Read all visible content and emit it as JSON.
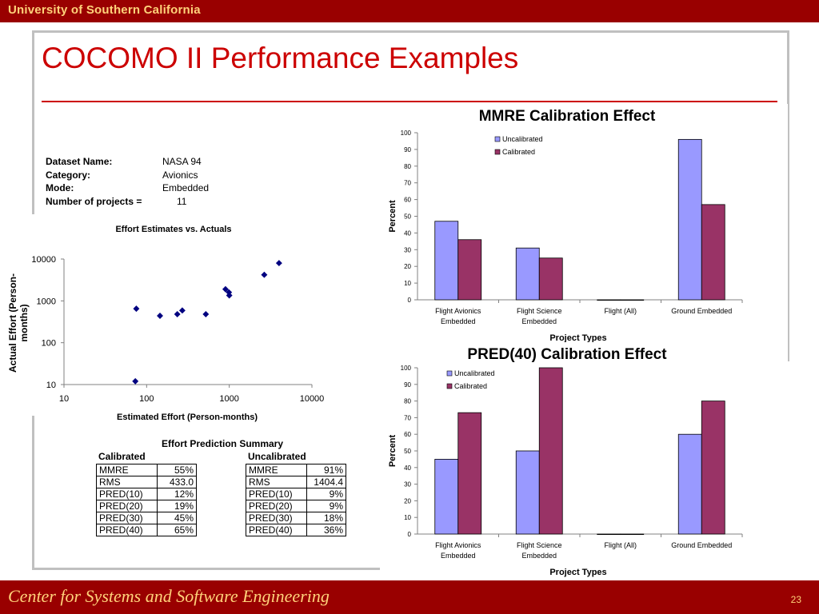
{
  "header": {
    "university": "University of Southern California"
  },
  "slide": {
    "title": "COCOMO II Performance Examples"
  },
  "dataset": [
    {
      "key": "Dataset Name:",
      "value": "NASA 94"
    },
    {
      "key": "Category:",
      "value": "Avionics"
    },
    {
      "key": "Mode:",
      "value": "Embedded"
    },
    {
      "key": "Number of projects =",
      "value": "11"
    }
  ],
  "summary": {
    "title": "Effort Prediction Summary",
    "calibrated_label": "Calibrated",
    "uncalibrated_label": "Uncalibrated",
    "calibrated": [
      [
        "MMRE",
        "55%"
      ],
      [
        "RMS",
        "433.0"
      ],
      [
        "PRED(10)",
        "12%"
      ],
      [
        "PRED(20)",
        "19%"
      ],
      [
        "PRED(30)",
        "45%"
      ],
      [
        "PRED(40)",
        "65%"
      ]
    ],
    "uncalibrated": [
      [
        "MMRE",
        "91%"
      ],
      [
        "RMS",
        "1404.4"
      ],
      [
        "PRED(10)",
        "9%"
      ],
      [
        "PRED(20)",
        "9%"
      ],
      [
        "PRED(30)",
        "18%"
      ],
      [
        "PRED(40)",
        "36%"
      ]
    ]
  },
  "footer": {
    "center": "Center for Systems and Software Engineering",
    "page": "23"
  },
  "chart_data": [
    {
      "type": "scatter",
      "title": "Effort Estimates vs. Actuals",
      "xlabel": "Estimated Effort (Person-months)",
      "ylabel": "Actual Effort (Person-months)",
      "xscale": "log",
      "yscale": "log",
      "xlim": [
        10,
        10000
      ],
      "ylim": [
        10,
        10000
      ],
      "xticks": [
        "10",
        "100",
        "1000",
        "10000"
      ],
      "yticks": [
        "10",
        "100",
        "1000",
        "10000"
      ],
      "points": [
        [
          73,
          12
        ],
        [
          75,
          650
        ],
        [
          145,
          440
        ],
        [
          235,
          480
        ],
        [
          270,
          590
        ],
        [
          520,
          480
        ],
        [
          900,
          1900
        ],
        [
          990,
          1600
        ],
        [
          1000,
          1350
        ],
        [
          2650,
          4200
        ],
        [
          4000,
          8000
        ]
      ],
      "color": "#000080",
      "grid": false
    },
    {
      "type": "bar",
      "title": "MMRE Calibration Effect",
      "xlabel": "Project Types",
      "ylabel": "Percent",
      "ylim": [
        0,
        100
      ],
      "yticks": [
        "0",
        "10",
        "20",
        "30",
        "40",
        "50",
        "60",
        "70",
        "80",
        "90",
        "100"
      ],
      "categories": [
        [
          "Flight Avionics",
          "Embedded"
        ],
        [
          "Flight Science",
          "Embedded"
        ],
        [
          "Flight (All)"
        ],
        [
          "Ground Embedded"
        ]
      ],
      "series": [
        {
          "name": "Uncalibrated",
          "color": "#9999ff",
          "values": [
            47,
            31,
            0,
            96
          ]
        },
        {
          "name": "Calibrated",
          "color": "#993366",
          "values": [
            36,
            25,
            0,
            57
          ]
        }
      ],
      "legend": "top-right"
    },
    {
      "type": "bar",
      "title": "PRED(40) Calibration Effect",
      "xlabel": "Project Types",
      "ylabel": "Percent",
      "ylim": [
        0,
        100
      ],
      "yticks": [
        "0",
        "10",
        "20",
        "30",
        "40",
        "50",
        "60",
        "70",
        "80",
        "90",
        "100"
      ],
      "categories": [
        [
          "Flight Avionics",
          "Embedded"
        ],
        [
          "Flight Science",
          "Embedded"
        ],
        [
          "Flight (All)"
        ],
        [
          "Ground Embedded"
        ]
      ],
      "series": [
        {
          "name": "Uncalibrated",
          "color": "#9999ff",
          "values": [
            45,
            50,
            0,
            60
          ]
        },
        {
          "name": "Calibrated",
          "color": "#993366",
          "values": [
            73,
            100,
            0,
            80
          ]
        }
      ],
      "legend": "top-right"
    }
  ]
}
